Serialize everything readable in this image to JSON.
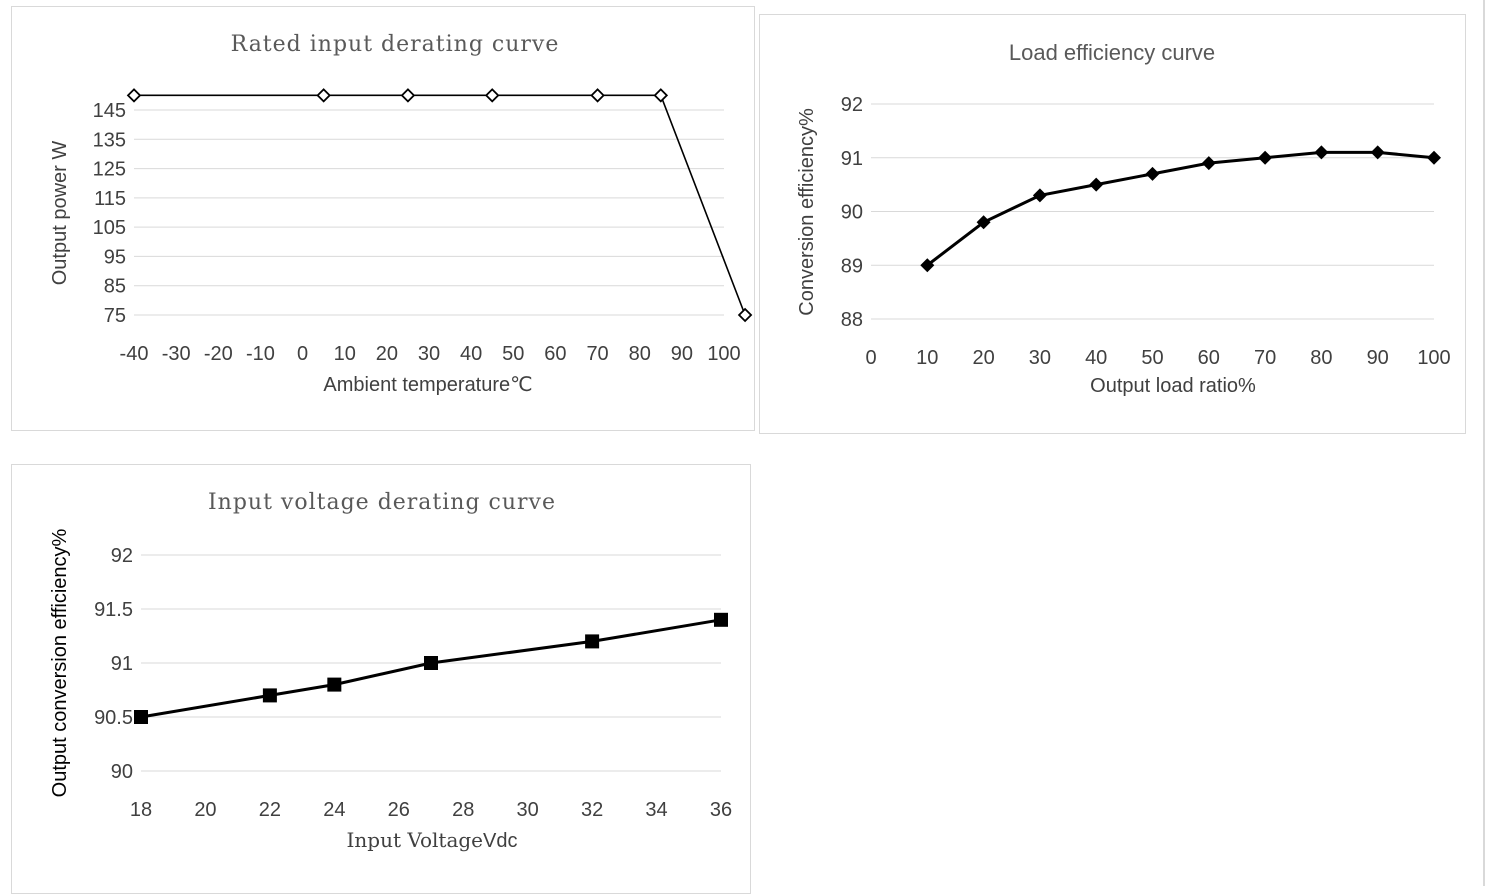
{
  "chart_data": [
    {
      "type": "line",
      "title": "Rated input derating curve",
      "xlabel": "Ambient temperature℃",
      "ylabel": "Output power W",
      "x_ticks": [
        "-40",
        "-30",
        "-20",
        "-10",
        "0",
        "10",
        "20",
        "30",
        "40",
        "50",
        "60",
        "70",
        "80",
        "90",
        "100"
      ],
      "y_ticks": [
        "75",
        "85",
        "95",
        "105",
        "115",
        "125",
        "135",
        "145"
      ],
      "xlim": [
        -40,
        100
      ],
      "ylim": [
        75,
        145
      ],
      "grid": "horizontal",
      "marker": "open-diamond",
      "series": [
        {
          "x": [
            -40,
            5,
            25,
            45,
            70,
            85,
            105
          ],
          "y": [
            150,
            150,
            150,
            150,
            150,
            150,
            75
          ]
        }
      ]
    },
    {
      "type": "line",
      "title": "Load efficiency curve",
      "xlabel": "Output load ratio%",
      "ylabel": "Conversion efficiency%",
      "x_ticks": [
        "0",
        "10",
        "20",
        "30",
        "40",
        "50",
        "60",
        "70",
        "80",
        "90",
        "100"
      ],
      "y_ticks": [
        "88",
        "89",
        "90",
        "91",
        "92"
      ],
      "xlim": [
        0,
        100
      ],
      "ylim": [
        88,
        92
      ],
      "grid": "horizontal",
      "marker": "filled-diamond",
      "series": [
        {
          "x": [
            10,
            20,
            30,
            40,
            50,
            60,
            70,
            80,
            90,
            100
          ],
          "y": [
            89.0,
            89.8,
            90.3,
            90.5,
            90.7,
            90.9,
            91.0,
            91.1,
            91.1,
            91.0
          ]
        }
      ]
    },
    {
      "type": "line",
      "title": "Input voltage derating curve",
      "xlabel_prefix": "Input Voltage",
      "xlabel_suffix": "Vdc",
      "ylabel": "Output conversion efficiency%",
      "x_ticks": [
        "18",
        "20",
        "22",
        "24",
        "26",
        "28",
        "30",
        "32",
        "34",
        "36"
      ],
      "y_ticks": [
        "90",
        "90.5",
        "91",
        "91.5",
        "92"
      ],
      "xlim": [
        18,
        36
      ],
      "ylim": [
        90,
        92
      ],
      "grid": "horizontal",
      "marker": "filled-square",
      "series": [
        {
          "x": [
            18,
            22,
            24,
            27,
            32,
            36
          ],
          "y": [
            90.5,
            90.7,
            90.8,
            91.0,
            91.2,
            91.4
          ]
        }
      ]
    }
  ],
  "colors": {
    "line": "#000000",
    "grid": "#d9d9d9",
    "title": "#595959",
    "text": "#404040"
  }
}
